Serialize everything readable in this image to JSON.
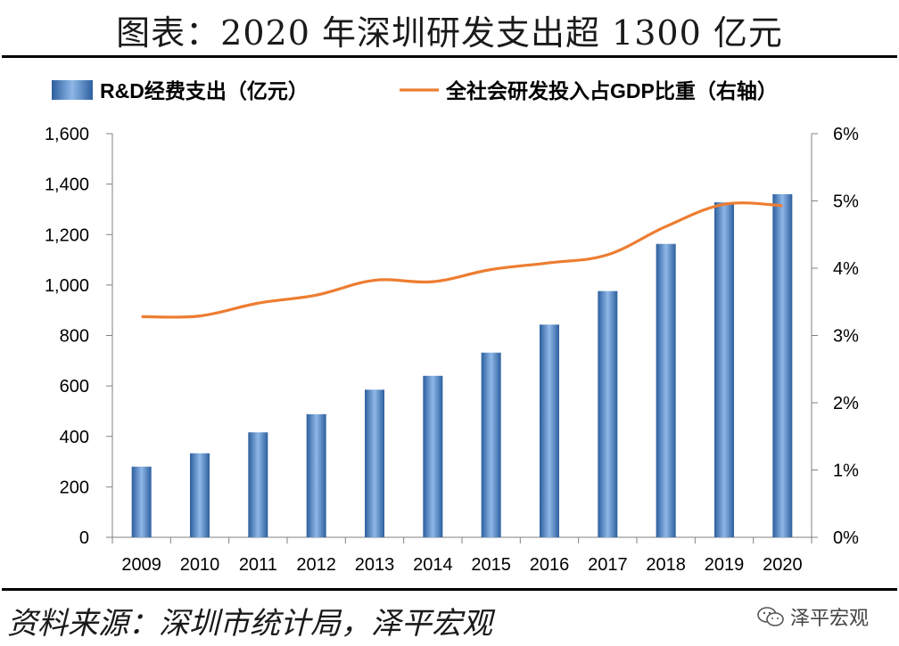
{
  "title": "图表：2020 年深圳研发支出超 1300 亿元",
  "source": "资料来源：深圳市统计局，泽平宏观",
  "watermark": {
    "text": "泽平宏观",
    "icon": "wechat-icon"
  },
  "colors": {
    "bar_dark": "#2c5f9e",
    "bar_light": "#8fb8e8",
    "line": "#ed7d31",
    "axis": "#808080"
  },
  "chart_data": {
    "type": "bar",
    "title": "",
    "categories": [
      "2009",
      "2010",
      "2011",
      "2012",
      "2013",
      "2014",
      "2015",
      "2016",
      "2017",
      "2018",
      "2019",
      "2020"
    ],
    "series": [
      {
        "name": "R&D经费支出（亿元）",
        "type": "bar",
        "axis": "left",
        "values": [
          280,
          333,
          416,
          488,
          585,
          640,
          732,
          843,
          976,
          1163,
          1328,
          1360
        ]
      },
      {
        "name": "全社会研发投入占GDP比重（右轴）",
        "type": "line",
        "axis": "right",
        "values": [
          3.28,
          3.29,
          3.48,
          3.6,
          3.82,
          3.8,
          3.98,
          4.08,
          4.2,
          4.62,
          4.95,
          4.93
        ]
      }
    ],
    "y_left": {
      "ylim": [
        0,
        1600
      ],
      "ticks": [
        "0",
        "200",
        "400",
        "600",
        "800",
        "1,000",
        "1,200",
        "1,400",
        "1,600"
      ],
      "tick_values": [
        0,
        200,
        400,
        600,
        800,
        1000,
        1200,
        1400,
        1600
      ]
    },
    "y_right": {
      "ylim": [
        0,
        6
      ],
      "ticks": [
        "0%",
        "1%",
        "2%",
        "3%",
        "4%",
        "5%",
        "6%"
      ],
      "tick_values": [
        0,
        1,
        2,
        3,
        4,
        5,
        6
      ]
    },
    "legend_position": "top",
    "grid": false
  }
}
